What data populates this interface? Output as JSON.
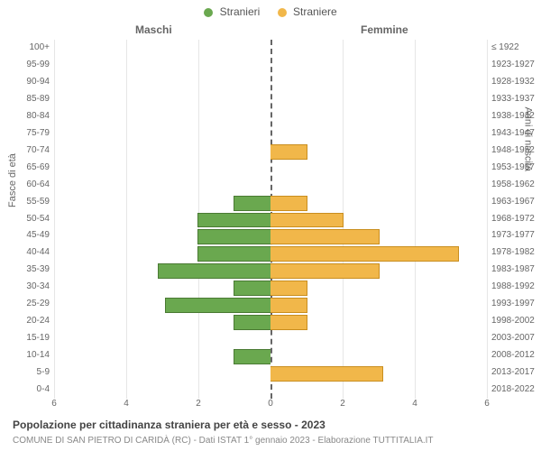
{
  "legend": {
    "male": {
      "label": "Stranieri",
      "color": "#6aa84f"
    },
    "female": {
      "label": "Straniere",
      "color": "#f1b74a"
    }
  },
  "headers": {
    "left": "Maschi",
    "right": "Femmine"
  },
  "axis_labels": {
    "left": "Fasce di età",
    "right": "Anni di nascita"
  },
  "chart": {
    "type": "population-pyramid",
    "x_max": 6,
    "x_ticks": [
      0,
      2,
      4,
      6
    ],
    "grid_color": "#e6e6e6",
    "center_line_color": "#666666",
    "bar_border_male": "#4a7a33",
    "bar_border_female": "#c98e1f",
    "background_color": "#ffffff",
    "rows": [
      {
        "age": "100+",
        "birth": "≤ 1922",
        "m": 0,
        "f": 0
      },
      {
        "age": "95-99",
        "birth": "1923-1927",
        "m": 0,
        "f": 0
      },
      {
        "age": "90-94",
        "birth": "1928-1932",
        "m": 0,
        "f": 0
      },
      {
        "age": "85-89",
        "birth": "1933-1937",
        "m": 0,
        "f": 0
      },
      {
        "age": "80-84",
        "birth": "1938-1942",
        "m": 0,
        "f": 0
      },
      {
        "age": "75-79",
        "birth": "1943-1947",
        "m": 0,
        "f": 0
      },
      {
        "age": "70-74",
        "birth": "1948-1952",
        "m": 0,
        "f": 1
      },
      {
        "age": "65-69",
        "birth": "1953-1957",
        "m": 0,
        "f": 0
      },
      {
        "age": "60-64",
        "birth": "1958-1962",
        "m": 0,
        "f": 0
      },
      {
        "age": "55-59",
        "birth": "1963-1967",
        "m": 1,
        "f": 1
      },
      {
        "age": "50-54",
        "birth": "1968-1972",
        "m": 2,
        "f": 2
      },
      {
        "age": "45-49",
        "birth": "1973-1977",
        "m": 2,
        "f": 3
      },
      {
        "age": "40-44",
        "birth": "1978-1982",
        "m": 2,
        "f": 5.2
      },
      {
        "age": "35-39",
        "birth": "1983-1987",
        "m": 3.1,
        "f": 3
      },
      {
        "age": "30-34",
        "birth": "1988-1992",
        "m": 1,
        "f": 1
      },
      {
        "age": "25-29",
        "birth": "1993-1997",
        "m": 2.9,
        "f": 1
      },
      {
        "age": "20-24",
        "birth": "1998-2002",
        "m": 1,
        "f": 1
      },
      {
        "age": "15-19",
        "birth": "2003-2007",
        "m": 0,
        "f": 0
      },
      {
        "age": "10-14",
        "birth": "2008-2012",
        "m": 1,
        "f": 0
      },
      {
        "age": "5-9",
        "birth": "2013-2017",
        "m": 0,
        "f": 3.1
      },
      {
        "age": "0-4",
        "birth": "2018-2022",
        "m": 0,
        "f": 0
      }
    ]
  },
  "caption": {
    "title": "Popolazione per cittadinanza straniera per età e sesso - 2023",
    "subtitle": "COMUNE DI SAN PIETRO DI CARIDÀ (RC) - Dati ISTAT 1° gennaio 2023 - Elaborazione TUTTITALIA.IT"
  }
}
